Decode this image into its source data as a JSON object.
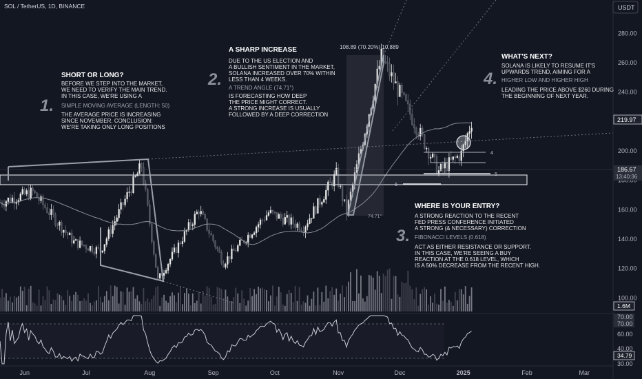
{
  "header": {
    "symbol_line": "SOL / TetherUS, 1D, BINANCE",
    "currency_button": "USDT"
  },
  "price_axis": {
    "ticks": [
      "280.00",
      "260.00",
      "240.00",
      "220.00",
      "200.00",
      "180.00",
      "160.00",
      "140.00",
      "120.00",
      "100.00"
    ],
    "last_price": "219.97",
    "marker_price": "186.67",
    "marker_countdown": "13:40:36",
    "volume_label": "1.6M"
  },
  "rsi_axis": {
    "ticks": [
      "70.00",
      "70.00",
      "60.00",
      "40.00",
      "30.00"
    ],
    "rsi_value": "34.79"
  },
  "time_axis": {
    "labels": [
      "Jun",
      "Jul",
      "Aug",
      "Sep",
      "Oct",
      "Nov",
      "Dec",
      "2025",
      "Feb",
      "Mar"
    ]
  },
  "annotations": {
    "step1": {
      "num": "1.",
      "title": "SHORT OR LONG?",
      "lines_a": [
        "BEFORE WE STEP INTO THE MARKET,",
        "WE NEED TO VERIFY THE MAIN TREND.",
        "IN THIS CASE, WE'RE USING A"
      ],
      "accent": "SIMPLE MOVING AVERAGE (LENGTH: 50)",
      "lines_b": [
        "THE AVERAGE PRICE IS INCREASING",
        "SINCE NOVEMBER. CONCLUSION:",
        "WE'RE TAKING ONLY LONG POSITIONS"
      ]
    },
    "step2": {
      "num": "2.",
      "title": "A SHARP INCREASE",
      "lines_a": [
        "DUE TO THE US ELECTION AND",
        "A BULLISH SENTIMENT IN THE MARKET,",
        "SOLANA INCREASED OVER 70% WITHIN",
        "LESS THAN 4 WEEKS."
      ],
      "accent": "A TREND ANGLE (74.71°)",
      "lines_b": [
        "IS FORECASTING HOW DEEP",
        "THE PRICE MIGHT CORRECT.",
        "A STRONG INCREASE IS USUALLY",
        "FOLLOWED BY A DEEP CORRECTION"
      ]
    },
    "step3": {
      "num": "3.",
      "title": "WHERE IS YOUR ENTRY?",
      "lines_a": [
        "A STRONG REACTION TO THE RECENT",
        "FED PRESS CONFERENCE INITIATED",
        "A STRONG (& NECESSARY) CORRECTION"
      ],
      "accent": "FIBONACCI LEVELS (0.618)",
      "lines_b": [
        "ACT AS EITHER RESISTANCE OR SUPPORT.",
        "IN THIS CASE, WE'RE SEEING A BUY",
        "REACTION AT THE 0.618 LEVEL, WHICH",
        "IS A 50% DECREASE FROM THE RECENT HIGH."
      ]
    },
    "step4": {
      "num": "4.",
      "title": "WHAT'S NEXT?",
      "lines_a": [
        "SOLANA IS LIKELY TO RESUME IT'S",
        "UPWARDS TREND, AIMING FOR A"
      ],
      "accent": "HIGHER LOW AND HIGHER HIGH",
      "lines_b": [
        "LEADING THE PRICE ABOVE $260 DURING",
        "THE BEGINNING OF NEXT YEAR."
      ]
    },
    "measure_label": "108.89 (70.20%) 10,889",
    "angle_label": "74.71°",
    "fib_labels": [
      "4",
      "5",
      "6"
    ]
  },
  "chart_data": {
    "type": "candlestick",
    "title": "SOL / TetherUS, 1D, BINANCE",
    "xlabel": "",
    "ylabel": "",
    "ylim": [
      88,
      298
    ],
    "x_range": [
      "2024-05-20",
      "2025-03-15"
    ],
    "grid": false,
    "indicators": [
      "SMA (length 50)",
      "Volume",
      "RSI"
    ],
    "key_points": [
      {
        "date": "2024-05-20",
        "price": 165
      },
      {
        "date": "2024-06-05",
        "price": 172
      },
      {
        "date": "2024-06-25",
        "price": 138
      },
      {
        "date": "2024-07-08",
        "price": 132
      },
      {
        "date": "2024-07-28",
        "price": 190
      },
      {
        "date": "2024-08-05",
        "price": 112
      },
      {
        "date": "2024-08-25",
        "price": 160
      },
      {
        "date": "2024-09-06",
        "price": 124
      },
      {
        "date": "2024-09-28",
        "price": 158
      },
      {
        "date": "2024-10-15",
        "price": 148
      },
      {
        "date": "2024-10-31",
        "price": 184
      },
      {
        "date": "2024-11-05",
        "price": 158
      },
      {
        "date": "2024-11-22",
        "price": 264
      },
      {
        "date": "2024-12-05",
        "price": 228
      },
      {
        "date": "2024-12-20",
        "price": 186
      },
      {
        "date": "2024-12-31",
        "price": 198
      },
      {
        "date": "2025-01-05",
        "price": 220
      }
    ],
    "horizontal_zone": [
      180,
      184
    ],
    "last_price": 219.97,
    "rsi_last": 34.79
  }
}
